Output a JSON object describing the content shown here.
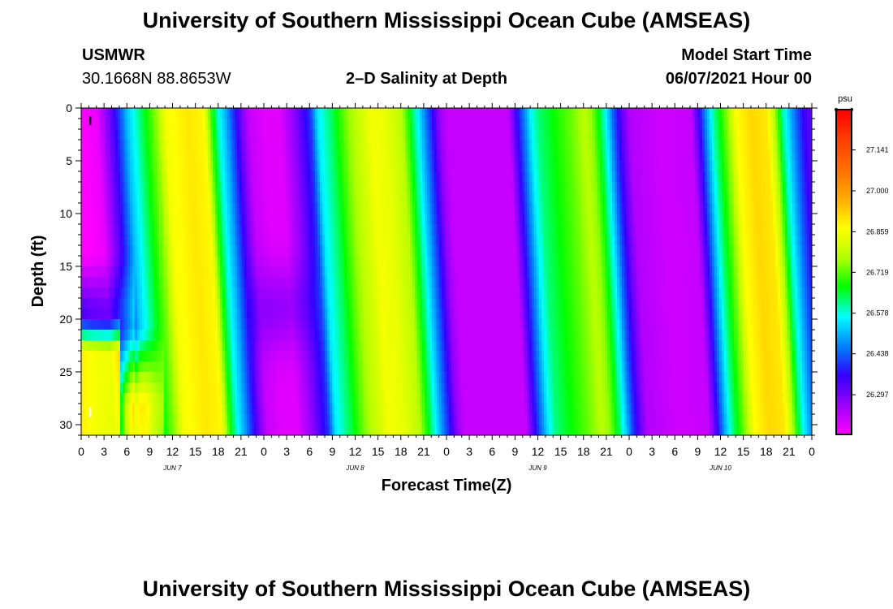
{
  "title": "University of Southern Mississippi Ocean Cube (AMSEAS)",
  "footer_title": "University of Southern Mississippi Ocean Cube (AMSEAS)",
  "station": {
    "name": "USMWR",
    "coords": "30.1668N  88.8653W"
  },
  "model_start": {
    "label": "Model Start Time",
    "value": "06/07/2021 Hour 00"
  },
  "chart_data": {
    "type": "heatmap",
    "title": "2–D Salinity at Depth",
    "xlabel": "Forecast Time(Z)",
    "ylabel": "Depth (ft)",
    "x_hours_range": [
      0,
      96
    ],
    "ylim": [
      0,
      31
    ],
    "y_inverted": true,
    "x_tick_labels": [
      "0",
      "3",
      "6",
      "9",
      "12",
      "15",
      "18",
      "21",
      "0",
      "3",
      "6",
      "9",
      "12",
      "15",
      "18",
      "21",
      "0",
      "3",
      "6",
      "9",
      "12",
      "15",
      "18",
      "21",
      "0",
      "3",
      "6",
      "9",
      "12",
      "15",
      "18",
      "21",
      "0"
    ],
    "y_tick_labels": [
      "0",
      "5",
      "10",
      "15",
      "20",
      "25",
      "30"
    ],
    "day_labels": [
      "JUN 7",
      "JUN 8",
      "JUN 9",
      "JUN 10"
    ],
    "colorbar": {
      "unit": "psu",
      "min": 26.16,
      "max": 27.28,
      "tick_values": [
        27.141,
        27.0,
        26.859,
        26.719,
        26.578,
        26.438,
        26.297
      ],
      "tick_labels": [
        "27.141",
        "27.000",
        "26.859",
        "26.719",
        "26.578",
        "26.438",
        "26.297"
      ],
      "colors": [
        "#ff00ff",
        "#9d00ff",
        "#3200ff",
        "#0082ff",
        "#00ffff",
        "#00ff00",
        "#b4ff00",
        "#ffff00",
        "#ffaa00",
        "#ff6e00",
        "#ff3c00",
        "#ff0000"
      ]
    },
    "markers": [
      "I",
      "I"
    ],
    "surface_salinity_by_hour": [
      [
        0,
        26.16
      ],
      [
        2,
        26.18
      ],
      [
        4,
        26.33
      ],
      [
        5,
        26.42
      ],
      [
        6,
        26.52
      ],
      [
        7,
        26.58
      ],
      [
        8,
        26.64
      ],
      [
        9,
        26.7
      ],
      [
        10,
        26.76
      ],
      [
        11,
        26.86
      ],
      [
        14,
        26.9
      ],
      [
        16,
        26.88
      ],
      [
        17,
        26.7
      ],
      [
        18,
        26.58
      ],
      [
        19,
        26.5
      ],
      [
        20,
        26.4
      ],
      [
        21,
        26.3
      ],
      [
        22,
        26.22
      ],
      [
        24,
        26.19
      ],
      [
        26,
        26.19
      ],
      [
        28,
        26.28
      ],
      [
        30,
        26.4
      ],
      [
        31,
        26.55
      ],
      [
        33,
        26.64
      ],
      [
        35,
        26.75
      ],
      [
        37,
        26.82
      ],
      [
        38,
        26.86
      ],
      [
        40,
        26.84
      ],
      [
        42,
        26.78
      ],
      [
        43,
        26.68
      ],
      [
        44,
        26.58
      ],
      [
        45,
        26.48
      ],
      [
        46,
        26.38
      ],
      [
        47,
        26.27
      ],
      [
        48,
        26.22
      ],
      [
        56,
        26.22
      ],
      [
        57,
        26.34
      ],
      [
        58,
        26.45
      ],
      [
        59,
        26.56
      ],
      [
        60,
        26.62
      ],
      [
        62,
        26.67
      ],
      [
        64,
        26.72
      ],
      [
        66,
        26.78
      ],
      [
        67,
        26.75
      ],
      [
        68,
        26.66
      ],
      [
        69,
        26.55
      ],
      [
        70,
        26.42
      ],
      [
        71,
        26.32
      ],
      [
        72,
        26.24
      ],
      [
        76,
        26.21
      ],
      [
        80,
        26.22
      ],
      [
        81,
        26.34
      ],
      [
        82,
        26.48
      ],
      [
        83,
        26.6
      ],
      [
        84,
        26.68
      ],
      [
        85,
        26.76
      ],
      [
        86,
        26.87
      ],
      [
        88,
        26.92
      ],
      [
        90,
        26.9
      ],
      [
        91,
        26.78
      ],
      [
        92,
        26.62
      ],
      [
        93,
        26.52
      ],
      [
        94,
        26.43
      ],
      [
        95,
        26.35
      ],
      [
        96,
        26.32
      ]
    ]
  }
}
